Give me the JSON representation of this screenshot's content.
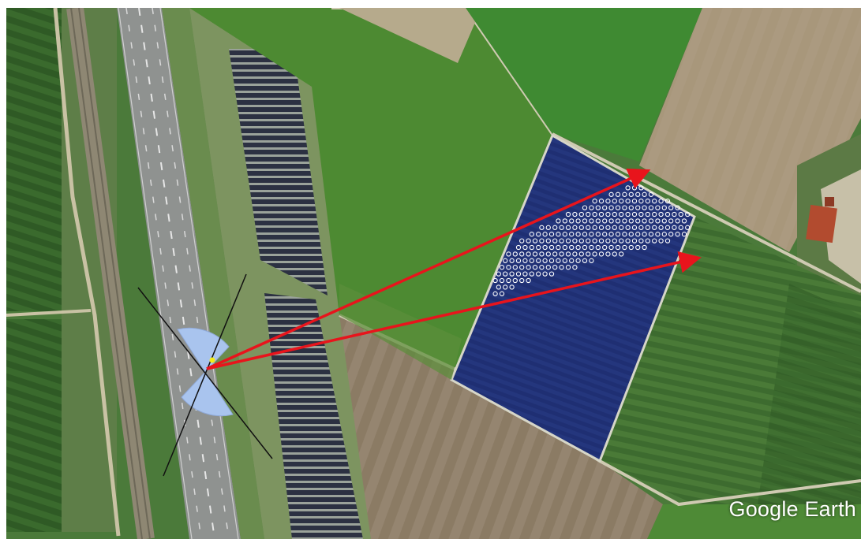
{
  "map": {
    "watermark": "Google Earth",
    "colors": {
      "arrow": "#e8141c",
      "sector": "#a9c4ee",
      "field_overlay": "#1f2f73",
      "dots": "#ffffff",
      "sensor_marker": "#f2ec1a"
    }
  }
}
